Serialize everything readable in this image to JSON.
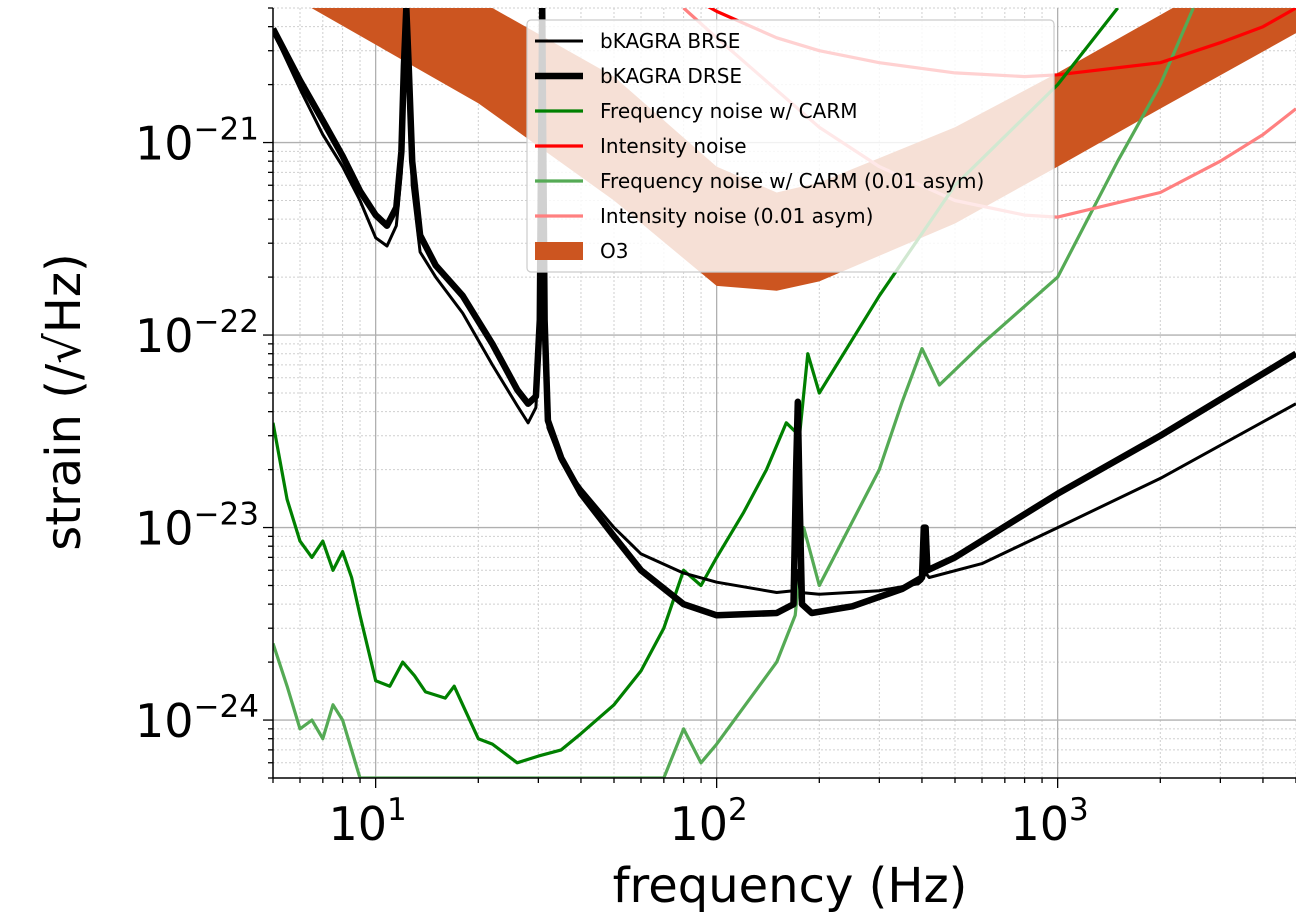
{
  "chart_data": {
    "type": "line",
    "xlabel": "frequency (Hz)",
    "ylabel": "strain (/√Hz)",
    "xscale": "log",
    "yscale": "log",
    "xlim": [
      5,
      5000
    ],
    "ylim": [
      5e-25,
      5e-21
    ],
    "grid": "major and minor",
    "legend_position": "upper center",
    "x_ticks": [
      {
        "base": "10",
        "exp": "1",
        "value": 10
      },
      {
        "base": "10",
        "exp": "2",
        "value": 100
      },
      {
        "base": "10",
        "exp": "3",
        "value": 1000
      }
    ],
    "y_ticks": [
      {
        "base": "10",
        "exp": "−21",
        "value": 1e-21
      },
      {
        "base": "10",
        "exp": "−22",
        "value": 1e-22
      },
      {
        "base": "10",
        "exp": "−23",
        "value": 1e-23
      },
      {
        "base": "10",
        "exp": "−24",
        "value": 1e-24
      }
    ],
    "series": [
      {
        "name": "bKAGRA BRSE",
        "color": "#000000",
        "style": "thin",
        "points": [
          [
            5,
            3.8e-21
          ],
          [
            6,
            1.9e-21
          ],
          [
            7,
            1.1e-21
          ],
          [
            8,
            7.5e-22
          ],
          [
            9,
            5e-22
          ],
          [
            10,
            3.2e-22
          ],
          [
            10.8,
            2.9e-22
          ],
          [
            11.5,
            3.7e-22
          ],
          [
            11.9,
            7e-22
          ],
          [
            12.1,
            2e-21
          ],
          [
            12.3,
            5e-21
          ],
          [
            12.5,
            2e-21
          ],
          [
            12.8,
            6e-22
          ],
          [
            13.5,
            2.7e-22
          ],
          [
            15,
            2e-22
          ],
          [
            18,
            1.3e-22
          ],
          [
            22,
            7e-23
          ],
          [
            26,
            4.3e-23
          ],
          [
            28,
            3.5e-23
          ],
          [
            29.5,
            4.2e-23
          ],
          [
            30.3,
            1e-22
          ],
          [
            30.8,
            5e-21
          ],
          [
            31.3,
            1e-22
          ],
          [
            32,
            3.3e-23
          ],
          [
            35,
            2.2e-23
          ],
          [
            40,
            1.6e-23
          ],
          [
            50,
            1e-23
          ],
          [
            60,
            7.3e-24
          ],
          [
            80,
            5.8e-24
          ],
          [
            100,
            5.2e-24
          ],
          [
            150,
            4.6e-24
          ],
          [
            168,
            4.7e-24
          ],
          [
            172,
            6e-24
          ],
          [
            176,
            4.6e-24
          ],
          [
            200,
            4.5e-24
          ],
          [
            300,
            4.7e-24
          ],
          [
            390,
            5.1e-24
          ],
          [
            400,
            5.3e-24
          ],
          [
            410,
            5.8e-24
          ],
          [
            420,
            5.5e-24
          ],
          [
            600,
            6.5e-24
          ],
          [
            1000,
            1e-23
          ],
          [
            2000,
            1.8e-23
          ],
          [
            5000,
            4.4e-23
          ]
        ]
      },
      {
        "name": "bKAGRA DRSE",
        "color": "#000000",
        "style": "thick",
        "points": [
          [
            5,
            3.9e-21
          ],
          [
            6,
            2.1e-21
          ],
          [
            7,
            1.3e-21
          ],
          [
            8,
            8.5e-22
          ],
          [
            9,
            5.6e-22
          ],
          [
            10,
            4.2e-22
          ],
          [
            10.8,
            3.7e-22
          ],
          [
            11.5,
            4.6e-22
          ],
          [
            11.9,
            9e-22
          ],
          [
            12.1,
            2.5e-21
          ],
          [
            12.3,
            5e-21
          ],
          [
            12.5,
            2.5e-21
          ],
          [
            12.8,
            8e-22
          ],
          [
            13.5,
            3.3e-22
          ],
          [
            15,
            2.3e-22
          ],
          [
            18,
            1.6e-22
          ],
          [
            22,
            9e-23
          ],
          [
            26,
            5.2e-23
          ],
          [
            28,
            4.4e-23
          ],
          [
            29.5,
            4.8e-23
          ],
          [
            30.3,
            1.2e-22
          ],
          [
            30.8,
            5e-21
          ],
          [
            31.3,
            1.2e-22
          ],
          [
            32,
            3.6e-23
          ],
          [
            35,
            2.3e-23
          ],
          [
            40,
            1.5e-23
          ],
          [
            50,
            9e-24
          ],
          [
            60,
            6e-24
          ],
          [
            80,
            4e-24
          ],
          [
            100,
            3.5e-24
          ],
          [
            150,
            3.6e-24
          ],
          [
            168,
            4e-24
          ],
          [
            171,
            2e-23
          ],
          [
            173,
            4.5e-23
          ],
          [
            175,
            1.5e-23
          ],
          [
            178,
            4e-24
          ],
          [
            190,
            3.6e-24
          ],
          [
            250,
            3.9e-24
          ],
          [
            350,
            4.8e-24
          ],
          [
            400,
            5.5e-24
          ],
          [
            405,
            1e-23
          ],
          [
            410,
            1e-23
          ],
          [
            415,
            6e-24
          ],
          [
            500,
            7e-24
          ],
          [
            1000,
            1.5e-23
          ],
          [
            2000,
            3e-23
          ],
          [
            5000,
            8e-23
          ]
        ]
      },
      {
        "name": "Frequency noise w/ CARM",
        "color": "#008000",
        "style": "normal",
        "points": [
          [
            5,
            3.5e-23
          ],
          [
            5.5,
            1.4e-23
          ],
          [
            6,
            8.5e-24
          ],
          [
            6.5,
            7e-24
          ],
          [
            7,
            8.5e-24
          ],
          [
            7.5,
            6e-24
          ],
          [
            8,
            7.5e-24
          ],
          [
            8.5,
            5.5e-24
          ],
          [
            9,
            3.5e-24
          ],
          [
            10,
            1.6e-24
          ],
          [
            11,
            1.5e-24
          ],
          [
            12,
            2e-24
          ],
          [
            13,
            1.7e-24
          ],
          [
            14,
            1.4e-24
          ],
          [
            16,
            1.3e-24
          ],
          [
            17,
            1.5e-24
          ],
          [
            18,
            1.2e-24
          ],
          [
            20,
            8e-25
          ],
          [
            22,
            7.5e-25
          ],
          [
            26,
            6e-25
          ],
          [
            30,
            6.5e-25
          ],
          [
            35,
            7e-25
          ],
          [
            40,
            8.5e-25
          ],
          [
            50,
            1.2e-24
          ],
          [
            60,
            1.8e-24
          ],
          [
            70,
            3e-24
          ],
          [
            80,
            6e-24
          ],
          [
            90,
            5e-24
          ],
          [
            100,
            7e-24
          ],
          [
            120,
            1.2e-23
          ],
          [
            140,
            2e-23
          ],
          [
            160,
            3.5e-23
          ],
          [
            175,
            3e-23
          ],
          [
            185,
            8e-23
          ],
          [
            200,
            5e-23
          ],
          [
            300,
            1.6e-22
          ],
          [
            500,
            6e-22
          ],
          [
            1000,
            2e-21
          ],
          [
            1500,
            5e-21
          ]
        ]
      },
      {
        "name": "Intensity noise",
        "color": "#ff0000",
        "style": "normal",
        "points": [
          [
            80,
            6e-21
          ],
          [
            100,
            4.8e-21
          ],
          [
            150,
            3.5e-21
          ],
          [
            200,
            3e-21
          ],
          [
            300,
            2.6e-21
          ],
          [
            500,
            2.3e-21
          ],
          [
            800,
            2.2e-21
          ],
          [
            1000,
            2.25e-21
          ],
          [
            2000,
            2.6e-21
          ],
          [
            3000,
            3.3e-21
          ],
          [
            4000,
            4e-21
          ],
          [
            5000,
            5e-21
          ]
        ]
      },
      {
        "name": "Frequency noise w/ CARM (0.01 asym)",
        "color": "#55aa55",
        "style": "normal",
        "points": [
          [
            5,
            2.5e-24
          ],
          [
            5.5,
            1.5e-24
          ],
          [
            6,
            9e-25
          ],
          [
            6.5,
            1e-24
          ],
          [
            7,
            8e-25
          ],
          [
            7.5,
            1.2e-24
          ],
          [
            8,
            1e-24
          ],
          [
            9,
            5e-25
          ],
          [
            70,
            5e-25
          ],
          [
            80,
            9e-25
          ],
          [
            90,
            6e-25
          ],
          [
            100,
            7.5e-25
          ],
          [
            150,
            2e-24
          ],
          [
            170,
            3.5e-24
          ],
          [
            180,
            1e-23
          ],
          [
            200,
            5e-24
          ],
          [
            300,
            2e-23
          ],
          [
            350,
            4.5e-23
          ],
          [
            400,
            8.5e-23
          ],
          [
            450,
            5.5e-23
          ],
          [
            600,
            9e-23
          ],
          [
            1000,
            2e-22
          ],
          [
            1500,
            8e-22
          ],
          [
            2000,
            2e-21
          ],
          [
            2500,
            5e-21
          ]
        ]
      },
      {
        "name": "Intensity noise (0.01 asym)",
        "color": "#ff8080",
        "style": "normal",
        "points": [
          [
            80,
            5e-21
          ],
          [
            100,
            3.5e-21
          ],
          [
            200,
            1.2e-21
          ],
          [
            300,
            7.5e-22
          ],
          [
            500,
            5e-22
          ],
          [
            800,
            4.2e-22
          ],
          [
            1000,
            4.1e-22
          ],
          [
            2000,
            5.5e-22
          ],
          [
            3000,
            8e-22
          ],
          [
            4000,
            1.1e-21
          ],
          [
            5000,
            1.5e-21
          ]
        ]
      }
    ],
    "band": {
      "name": "O3",
      "color": "#cc5520",
      "upper": [
        [
          5,
          2.2e-20
        ],
        [
          50,
          2.2e-21
        ],
        [
          100,
          7.5e-22
        ],
        [
          150,
          5.5e-22
        ],
        [
          200,
          6.2e-22
        ],
        [
          500,
          1.2e-21
        ],
        [
          1000,
          2.3e-21
        ],
        [
          2000,
          4.6e-21
        ],
        [
          5000,
          1.15e-20
        ]
      ],
      "lower": [
        [
          5,
          6.5e-21
        ],
        [
          20,
          1.6e-21
        ],
        [
          50,
          5e-22
        ],
        [
          100,
          1.8e-22
        ],
        [
          150,
          1.7e-22
        ],
        [
          200,
          1.9e-22
        ],
        [
          500,
          3.8e-22
        ],
        [
          1000,
          7.5e-22
        ],
        [
          2000,
          1.5e-21
        ],
        [
          5000,
          3.7e-21
        ]
      ]
    },
    "legend_order": [
      "bKAGRA BRSE",
      "bKAGRA DRSE",
      "Frequency noise w/ CARM",
      "Intensity noise",
      "Frequency noise w/ CARM (0.01 asym)",
      "Intensity noise (0.01 asym)",
      "O3"
    ]
  }
}
